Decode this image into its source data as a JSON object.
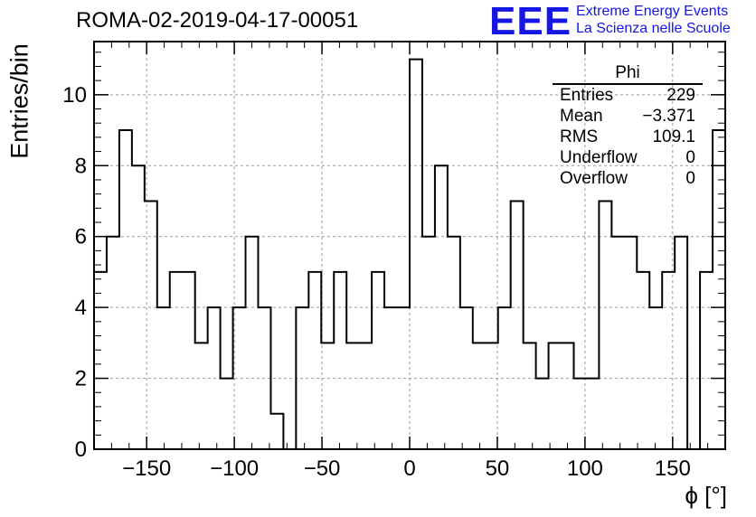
{
  "header": {
    "title": "ROMA-02-2019-04-17-00051",
    "logo_mark": "EEE",
    "logo_line1": "Extreme Energy Events",
    "logo_line2": "La Scienza nelle Scuole",
    "colors": {
      "logo": "#1515e6",
      "line": "#000000",
      "grid": "#9a9a9a"
    }
  },
  "stats": {
    "name": "Phi",
    "rows": [
      {
        "label": "Entries",
        "value": "229"
      },
      {
        "label": "Mean",
        "value": "−3.371"
      },
      {
        "label": "RMS",
        "value": "109.1"
      },
      {
        "label": "Underflow",
        "value": "0"
      },
      {
        "label": "Overflow",
        "value": "0"
      }
    ]
  },
  "chart_data": {
    "type": "histogram",
    "title": "ROMA-02-2019-04-17-00051",
    "xlabel": "ϕ [°]",
    "ylabel": "Entries/bin",
    "xlim": [
      -180,
      180
    ],
    "ylim": [
      0,
      11.5
    ],
    "grid": true,
    "bin_width": 7.2,
    "bin_edges_start": -180,
    "values": [
      5,
      6,
      9,
      8,
      7,
      4,
      5,
      5,
      3,
      4,
      2,
      4,
      6,
      4,
      1,
      0,
      4,
      5,
      3,
      5,
      3,
      3,
      5,
      4,
      4,
      11,
      6,
      8,
      6,
      4,
      3,
      3,
      4,
      7,
      3,
      2,
      3,
      3,
      2,
      2,
      7,
      6,
      6,
      5,
      4,
      5,
      6,
      0,
      5,
      9
    ],
    "xticks": [
      -150,
      -100,
      -50,
      0,
      50,
      100,
      150
    ],
    "xtick_labels": [
      "−150",
      "−100",
      "−50",
      "0",
      "50",
      "100",
      "150"
    ],
    "yticks": [
      0,
      2,
      4,
      6,
      8,
      10
    ],
    "ytick_labels": [
      "0",
      "2",
      "4",
      "6",
      "8",
      "10"
    ]
  }
}
